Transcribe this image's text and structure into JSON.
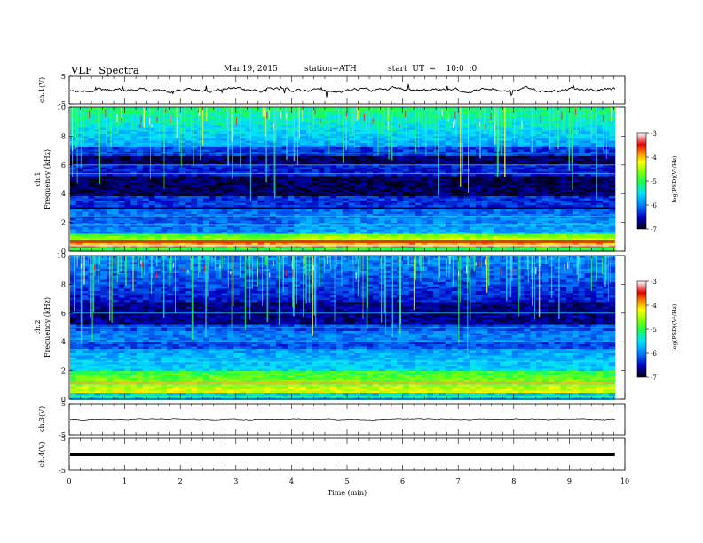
{
  "header": {
    "title": "VLF  Spectra",
    "date": "Mar.19, 2015",
    "station": "station=ATH",
    "start": "start  UT  =    10:0  :0"
  },
  "colors": {
    "spectrogram_low": "#000018",
    "spectrogram_mid_blue": "#0000e0",
    "spectrogram_cyan": "#00d8ff",
    "spectrogram_green": "#20ff40",
    "spectrogram_yellow": "#ffff00",
    "spectrogram_red": "#e00000",
    "colorbar_top": "#ffffff"
  },
  "chart_data": [
    {
      "type": "line",
      "panel": "ch1-waveform",
      "ylabel": "ch.1(V)",
      "ylim": [
        -5,
        5
      ],
      "yticks": [
        "5",
        "-5"
      ],
      "description_values": {
        "baseline": 0,
        "amplitude": 0.8
      }
    },
    {
      "type": "heatmap",
      "panel": "ch1-spectrogram",
      "ylabel_line1": "ch.1",
      "ylabel_line2": "Frequency  (kHz)",
      "ylim": [
        0,
        10
      ],
      "yticks": [
        "0",
        "2",
        "4",
        "6",
        "8",
        "10"
      ],
      "colorbar": {
        "label": "log(PSD)(V²/Hz)",
        "range": [
          -7,
          -3
        ],
        "ticks": [
          "-3",
          "-4",
          "-5",
          "-6",
          "-7"
        ]
      }
    },
    {
      "type": "heatmap",
      "panel": "ch2-spectrogram",
      "ylabel_line1": "ch.2",
      "ylabel_line2": "Frequency  (kHz)",
      "ylim": [
        0,
        10
      ],
      "yticks": [
        "0",
        "2",
        "4",
        "6",
        "8",
        "10"
      ],
      "colorbar": {
        "label": "log(PSD)(V²/Hz)",
        "range": [
          -7,
          -3
        ],
        "ticks": [
          "-3",
          "-4",
          "-5",
          "-6",
          "-7"
        ]
      }
    },
    {
      "type": "line",
      "panel": "ch3-waveform",
      "ylabel": "ch.3(V)",
      "ylim": [
        -5,
        5
      ],
      "yticks": [
        "5",
        "-5"
      ],
      "description_values": {
        "baseline": 0,
        "amplitude": 0.1
      }
    },
    {
      "type": "line",
      "panel": "ch4-waveform",
      "ylabel": "ch.4(V)",
      "ylim": [
        -5,
        5
      ],
      "yticks": [
        "5",
        "-5"
      ],
      "description_values": {
        "baseline": 0,
        "amplitude": 0.3
      }
    }
  ],
  "xaxis": {
    "label": "Time  (min)",
    "range": [
      0,
      10
    ],
    "ticks": [
      "0",
      "1",
      "2",
      "3",
      "4",
      "5",
      "6",
      "7",
      "8",
      "9",
      "10"
    ]
  }
}
